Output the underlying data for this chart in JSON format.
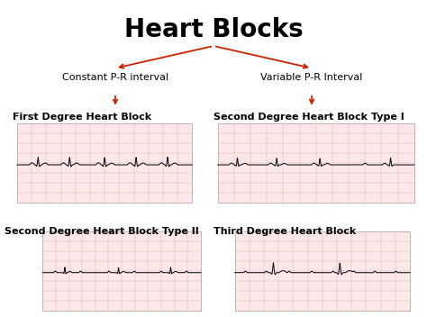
{
  "title": "Heart Blocks",
  "title_fontsize": 20,
  "bg_color": "#ffffff",
  "arrow_color": "#cc2200",
  "label_color": "#000000",
  "ecg_line_color": "#111111",
  "ecg_bg_color": "#fce8e8",
  "ecg_grid_color": "#e8b0b0",
  "branch_left_label": "Constant P-R interval",
  "branch_right_label": "Variable P-R Interval",
  "box_labels": [
    "First Degree Heart Block",
    "Second Degree Heart Block Type I",
    "Second Degree Heart Block Type II",
    "Third Degree Heart Block"
  ],
  "branch_fontsize": 8,
  "label_fontsize": 8,
  "label_fontweight": "bold"
}
